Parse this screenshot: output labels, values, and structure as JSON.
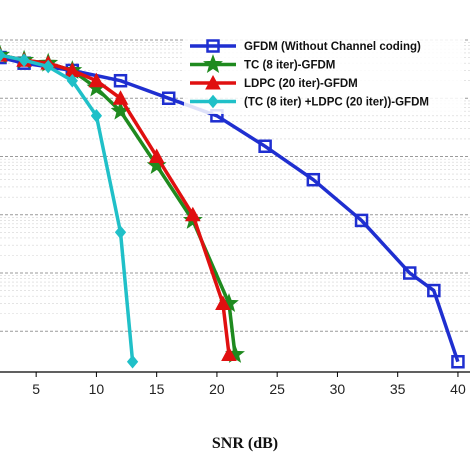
{
  "chart_data": {
    "type": "line",
    "title": "",
    "xlabel": "SNR (dB)",
    "ylabel": "",
    "xlim": [
      2,
      41
    ],
    "ylim": [
      2e-06,
      1
    ],
    "yscale": "log",
    "xticks": [
      5,
      10,
      15,
      20,
      25,
      30,
      35,
      40
    ],
    "grid": "horizontal",
    "legend_position": "top-right",
    "series": [
      {
        "name": "GFDM (Without Channel coding)",
        "color": "#1f2fd0",
        "marker": "square",
        "x": [
          2,
          4,
          8,
          12,
          16,
          20,
          24,
          28,
          32,
          36,
          38,
          40
        ],
        "y": [
          0.5,
          0.4,
          0.3,
          0.2,
          0.1,
          0.05,
          0.015,
          0.004,
          0.0008,
          0.0001,
          5e-05,
          3e-06
        ]
      },
      {
        "name": "TC (8 iter)-GFDM",
        "color": "#1f8a1f",
        "marker": "star",
        "x": [
          2,
          4,
          6,
          8,
          10,
          12,
          15,
          18,
          21,
          21.5
        ],
        "y": [
          0.55,
          0.45,
          0.4,
          0.3,
          0.15,
          0.06,
          0.007,
          0.0008,
          3e-05,
          4e-06
        ]
      },
      {
        "name": "LDPC (20 iter)-GFDM",
        "color": "#e01010",
        "marker": "triangle",
        "x": [
          2,
          4,
          6,
          8,
          10,
          12,
          15,
          18,
          20.5,
          21
        ],
        "y": [
          0.55,
          0.45,
          0.4,
          0.3,
          0.2,
          0.1,
          0.01,
          0.001,
          3e-05,
          4e-06
        ]
      },
      {
        "name": "(TC (8 iter) +LDPC (20 iter))-GFDM",
        "color": "#20c0c8",
        "marker": "diamond",
        "x": [
          2,
          4,
          6,
          8,
          10,
          12,
          13
        ],
        "y": [
          0.55,
          0.45,
          0.35,
          0.2,
          0.05,
          0.0005,
          3e-06
        ]
      }
    ]
  }
}
